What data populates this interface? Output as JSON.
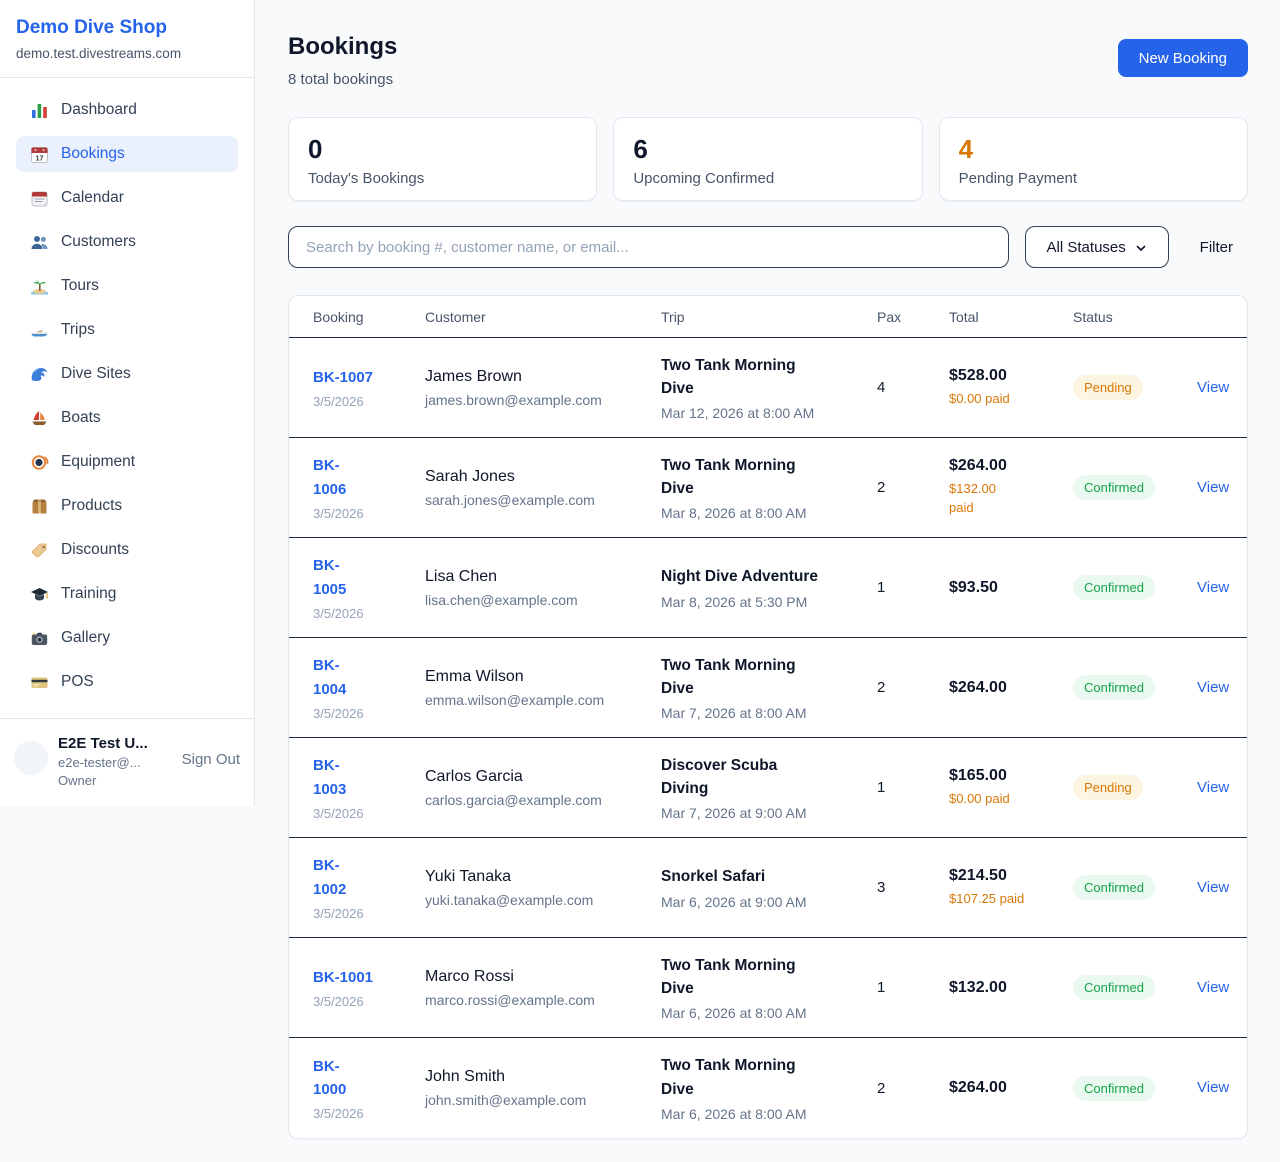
{
  "sidebar": {
    "brand": {
      "name": "Demo Dive Shop",
      "domain": "demo.test.divestreams.com"
    },
    "items": [
      {
        "label": "Dashboard",
        "icon": "bar-chart",
        "active": false
      },
      {
        "label": "Bookings",
        "icon": "calendar-date",
        "active": true
      },
      {
        "label": "Calendar",
        "icon": "calendar",
        "active": false
      },
      {
        "label": "Customers",
        "icon": "people",
        "active": false
      },
      {
        "label": "Tours",
        "icon": "island",
        "active": false
      },
      {
        "label": "Trips",
        "icon": "speedboat",
        "active": false
      },
      {
        "label": "Dive Sites",
        "icon": "wave",
        "active": false
      },
      {
        "label": "Boats",
        "icon": "sailboat",
        "active": false
      },
      {
        "label": "Equipment",
        "icon": "diving-mask",
        "active": false
      },
      {
        "label": "Products",
        "icon": "package",
        "active": false
      },
      {
        "label": "Discounts",
        "icon": "tag",
        "active": false
      },
      {
        "label": "Training",
        "icon": "grad-cap",
        "active": false
      },
      {
        "label": "Gallery",
        "icon": "camera",
        "active": false
      },
      {
        "label": "POS",
        "icon": "credit-card",
        "active": false
      }
    ],
    "user": {
      "name": "E2E Test U...",
      "email": "e2e-tester@...",
      "role": "Owner",
      "sign_out_label": "Sign Out"
    }
  },
  "header": {
    "title": "Bookings",
    "subtitle": "8 total bookings",
    "new_booking_label": "New Booking"
  },
  "stats": [
    {
      "value": "0",
      "label": "Today's Bookings",
      "orange": false
    },
    {
      "value": "6",
      "label": "Upcoming Confirmed",
      "orange": false
    },
    {
      "value": "4",
      "label": "Pending Payment",
      "orange": true
    }
  ],
  "filters": {
    "search_placeholder": "Search by booking #, customer name, or email...",
    "status_selected": "All Statuses",
    "filter_label": "Filter"
  },
  "table": {
    "columns": [
      "Booking",
      "Customer",
      "Trip",
      "Pax",
      "Total",
      "Status"
    ],
    "view_label": "View",
    "rows": [
      {
        "id_lines": [
          "BK-1007"
        ],
        "date": "3/5/2026",
        "customer": "James Brown",
        "email": "james.brown@example.com",
        "trip_lines": [
          "Two Tank Morning",
          "Dive"
        ],
        "trip_when": "Mar 12, 2026 at 8:00 AM",
        "pax": "4",
        "total": "$528.00",
        "paid_lines": [
          "$0.00 paid"
        ],
        "status": "Pending"
      },
      {
        "id_lines": [
          "BK-",
          "1006"
        ],
        "date": "3/5/2026",
        "customer": "Sarah Jones",
        "email": "sarah.jones@example.com",
        "trip_lines": [
          "Two Tank Morning",
          "Dive"
        ],
        "trip_when": "Mar 8, 2026 at 8:00 AM",
        "pax": "2",
        "total": "$264.00",
        "paid_lines": [
          "$132.00",
          "paid"
        ],
        "status": "Confirmed"
      },
      {
        "id_lines": [
          "BK-",
          "1005"
        ],
        "date": "3/5/2026",
        "customer": "Lisa Chen",
        "email": "lisa.chen@example.com",
        "trip_lines": [
          "Night Dive Adventure"
        ],
        "trip_when": "Mar 8, 2026 at 5:30 PM",
        "pax": "1",
        "total": "$93.50",
        "paid_lines": null,
        "status": "Confirmed"
      },
      {
        "id_lines": [
          "BK-",
          "1004"
        ],
        "date": "3/5/2026",
        "customer": "Emma Wilson",
        "email": "emma.wilson@example.com",
        "trip_lines": [
          "Two Tank Morning",
          "Dive"
        ],
        "trip_when": "Mar 7, 2026 at 8:00 AM",
        "pax": "2",
        "total": "$264.00",
        "paid_lines": null,
        "status": "Confirmed"
      },
      {
        "id_lines": [
          "BK-",
          "1003"
        ],
        "date": "3/5/2026",
        "customer": "Carlos Garcia",
        "email": "carlos.garcia@example.com",
        "trip_lines": [
          "Discover Scuba",
          "Diving"
        ],
        "trip_when": "Mar 7, 2026 at 9:00 AM",
        "pax": "1",
        "total": "$165.00",
        "paid_lines": [
          "$0.00 paid"
        ],
        "status": "Pending"
      },
      {
        "id_lines": [
          "BK-",
          "1002"
        ],
        "date": "3/5/2026",
        "customer": "Yuki Tanaka",
        "email": "yuki.tanaka@example.com",
        "trip_lines": [
          "Snorkel Safari"
        ],
        "trip_when": "Mar 6, 2026 at 9:00 AM",
        "pax": "3",
        "total": "$214.50",
        "paid_lines": [
          "$107.25 paid"
        ],
        "status": "Confirmed"
      },
      {
        "id_lines": [
          "BK-1001"
        ],
        "date": "3/5/2026",
        "customer": "Marco Rossi",
        "email": "marco.rossi@example.com",
        "trip_lines": [
          "Two Tank Morning",
          "Dive"
        ],
        "trip_when": "Mar 6, 2026 at 8:00 AM",
        "pax": "1",
        "total": "$132.00",
        "paid_lines": null,
        "status": "Confirmed"
      },
      {
        "id_lines": [
          "BK-",
          "1000"
        ],
        "date": "3/5/2026",
        "customer": "John Smith",
        "email": "john.smith@example.com",
        "trip_lines": [
          "Two Tank Morning",
          "Dive"
        ],
        "trip_when": "Mar 6, 2026 at 8:00 AM",
        "pax": "2",
        "total": "$264.00",
        "paid_lines": null,
        "status": "Confirmed"
      }
    ]
  },
  "colors": {
    "accent_blue": "#2563eb",
    "pending_text": "#d97706",
    "pending_bg": "#fdf5e1",
    "confirmed_text": "#16a34a",
    "confirmed_bg": "#e9f9ef",
    "paid_orange": "#d97706",
    "page_bg": "#f8fafc",
    "row_divider": "#1e293b"
  }
}
